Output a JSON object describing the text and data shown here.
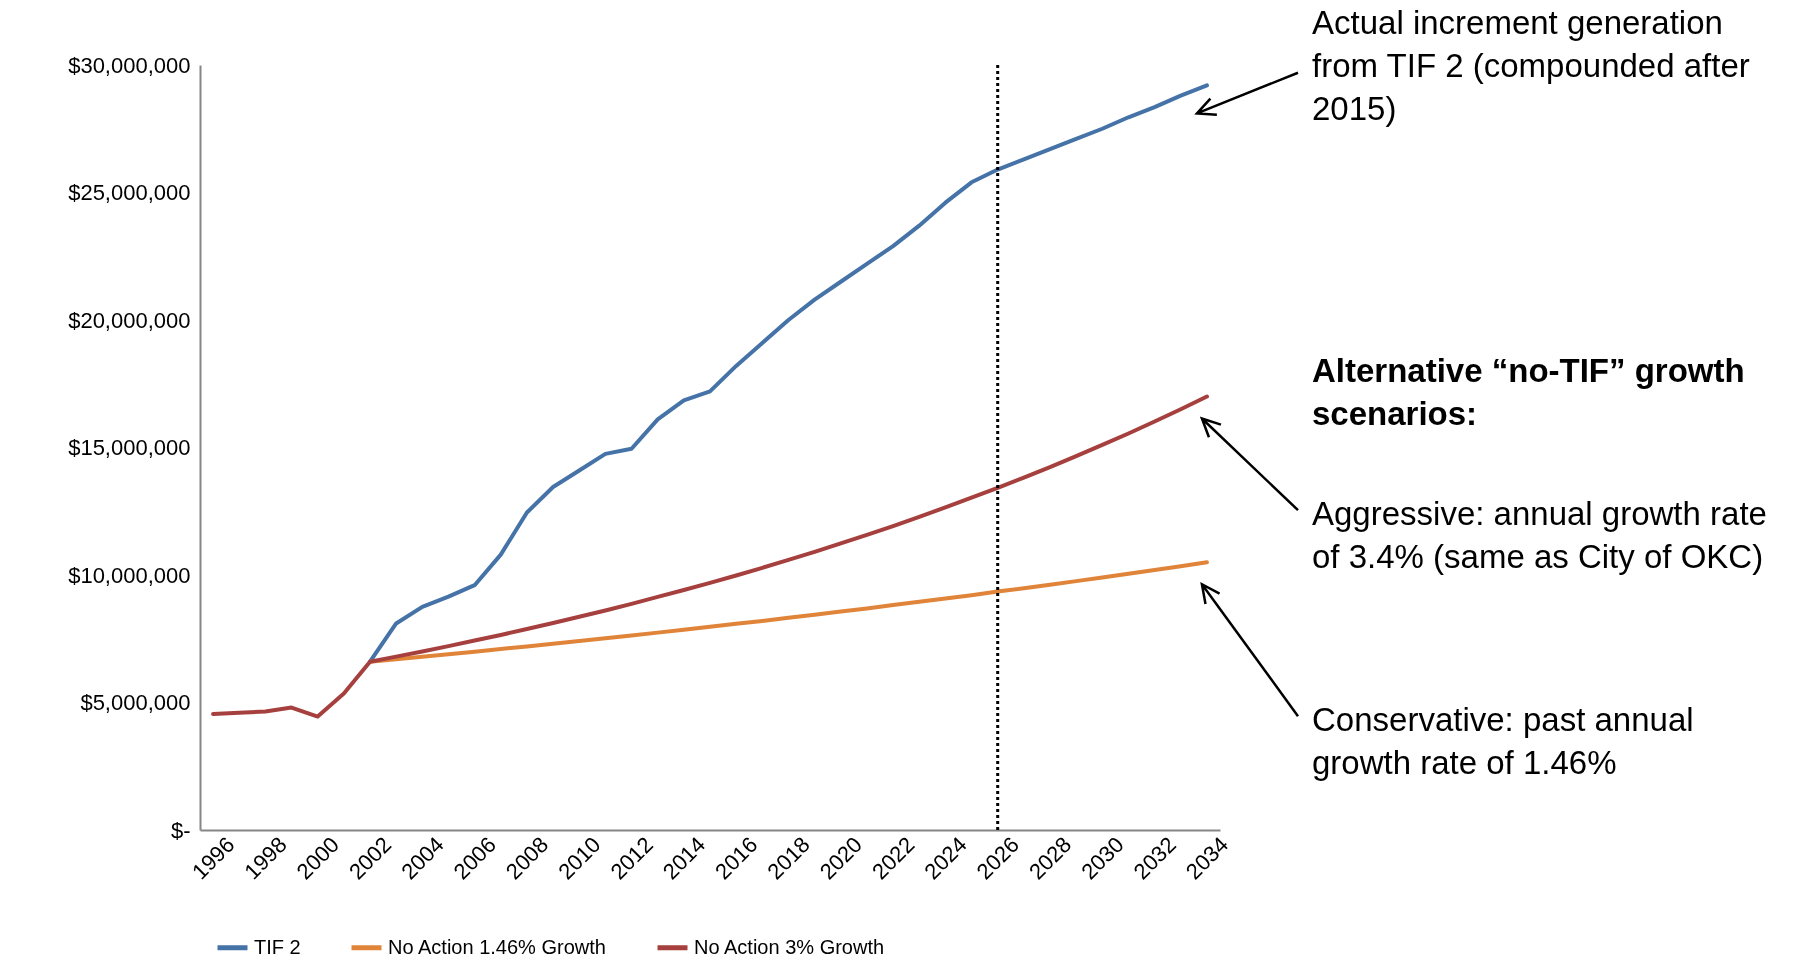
{
  "chart_data": {
    "type": "line",
    "categories": [
      "1996",
      null,
      "1998",
      null,
      "2000",
      null,
      "2002",
      null,
      "2004",
      null,
      "2006",
      null,
      "2008",
      null,
      "2010",
      null,
      "2012",
      null,
      "2014",
      null,
      "2016",
      null,
      "2018",
      null,
      "2020",
      null,
      "2022",
      null,
      "2024",
      null,
      "2026",
      null,
      "2028",
      null,
      "2030",
      null,
      "2032",
      null,
      "2034"
    ],
    "series": [
      {
        "name": "TIF 2",
        "color": "#4572a7",
        "values": [
          null,
          null,
          null,
          null,
          null,
          null,
          6600000,
          8100000,
          8750000,
          9150000,
          9600000,
          10800000,
          12450000,
          13450000,
          14100000,
          14750000,
          14950000,
          16100000,
          16850000,
          17200000,
          18200000,
          19100000,
          20000000,
          20800000,
          21500000,
          22200000,
          22900000,
          23700000,
          24600000,
          25400000,
          25900000,
          26300000,
          26700000,
          27100000,
          27500000,
          27950000,
          28350000,
          28800000,
          29200000
        ]
      },
      {
        "name": "No Action 1.46% Growth",
        "color": "#e0843a",
        "values": [
          null,
          null,
          null,
          null,
          null,
          null,
          6600000,
          6700000,
          6790000,
          6890000,
          6990000,
          7100000,
          7200000,
          7300000,
          7410000,
          7520000,
          7630000,
          7740000,
          7850000,
          7970000,
          8090000,
          8200000,
          8320000,
          8440000,
          8570000,
          8690000,
          8820000,
          8950000,
          9080000,
          9210000,
          9350000,
          9480000,
          9620000,
          9760000,
          9900000,
          10050000,
          10200000,
          10340000,
          10500000
        ]
      },
      {
        "name": "No Action 3% Growth",
        "color": "#a6403e",
        "values": [
          4550000,
          4600000,
          4650000,
          4800000,
          4450000,
          5350000,
          6600000,
          6800000,
          7000000,
          7210000,
          7430000,
          7650000,
          7880000,
          8120000,
          8360000,
          8610000,
          8870000,
          9140000,
          9410000,
          9690000,
          9980000,
          10280000,
          10590000,
          10910000,
          11240000,
          11570000,
          11920000,
          12280000,
          12650000,
          13030000,
          13420000,
          13820000,
          14230000,
          14660000,
          15100000,
          15550000,
          16020000,
          16500000,
          17000000
        ]
      }
    ],
    "ylim": [
      0,
      30000000
    ],
    "yticks": [
      {
        "value": 0,
        "label": "$-"
      },
      {
        "value": 5000000,
        "label": "$5,000,000"
      },
      {
        "value": 10000000,
        "label": "$10,000,000"
      },
      {
        "value": 15000000,
        "label": "$15,000,000"
      },
      {
        "value": 20000000,
        "label": "$20,000,000"
      },
      {
        "value": 25000000,
        "label": "$25,000,000"
      },
      {
        "value": 30000000,
        "label": "$30,000,000"
      }
    ],
    "ref_lines": [
      {
        "axis": "x",
        "value": "2026",
        "color": "#000000",
        "line_style": "dotted"
      }
    ],
    "legend": "bottom",
    "annotations": [
      "Actual increment generation from TIF 2 (compounded after 2015)",
      "Alternative “no-TIF” growth scenarios:",
      "Aggressive:  annual growth rate of 3.4% (same as City of OKC)",
      "Conservative:  past annual growth rate of 1.46%"
    ]
  }
}
